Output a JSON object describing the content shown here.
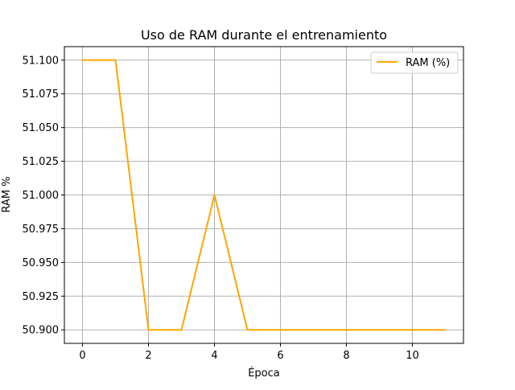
{
  "chart_data": {
    "type": "line",
    "title": "Uso de RAM durante el entrenamiento",
    "xlabel": "Época",
    "ylabel": "RAM %",
    "x": [
      0,
      1,
      2,
      3,
      4,
      5,
      6,
      7,
      8,
      9,
      10,
      11
    ],
    "series": [
      {
        "name": "RAM (%)",
        "color": "#ffa500",
        "values": [
          51.1,
          51.1,
          50.9,
          50.9,
          51.0,
          50.9,
          50.9,
          50.9,
          50.9,
          50.9,
          50.9,
          50.9
        ]
      }
    ],
    "xlim": [
      -0.55,
      11.55
    ],
    "ylim": [
      50.89,
      51.11
    ],
    "xticks": [
      0,
      2,
      4,
      6,
      8,
      10
    ],
    "xtick_labels": [
      "0",
      "2",
      "4",
      "6",
      "8",
      "10"
    ],
    "yticks": [
      50.9,
      50.925,
      50.95,
      50.975,
      51.0,
      51.025,
      51.05,
      51.075,
      51.1
    ],
    "ytick_labels": [
      "50.900",
      "50.925",
      "50.950",
      "50.975",
      "51.000",
      "51.025",
      "51.050",
      "51.075",
      "51.100"
    ],
    "grid": true,
    "grid_color": "#b0b0b0",
    "legend_position": "upper-right"
  }
}
